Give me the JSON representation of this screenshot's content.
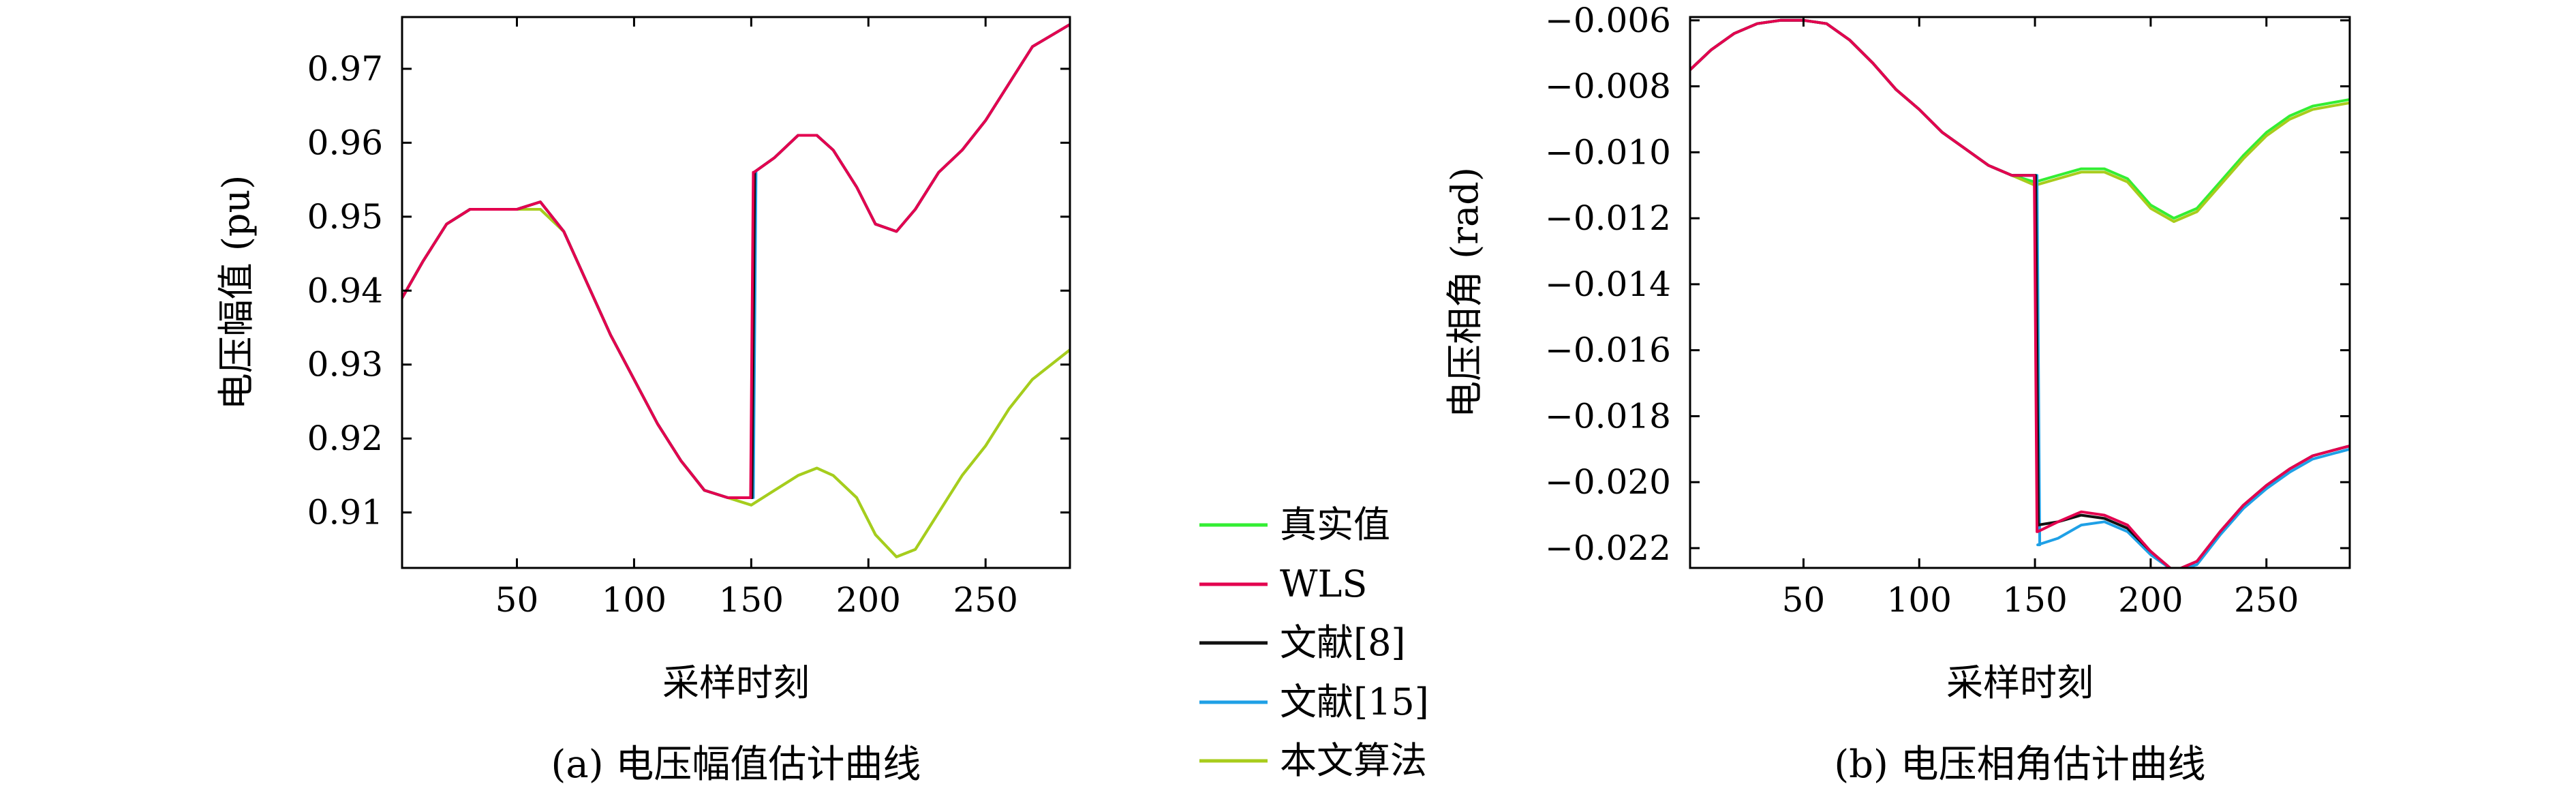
{
  "legend": [
    {
      "name": "真实值",
      "color": "#33ee33"
    },
    {
      "name": "WLS",
      "color": "#e3004f"
    },
    {
      "name": "文献[8]",
      "color": "#111111"
    },
    {
      "name": "文献[15]",
      "color": "#1fa0e6"
    },
    {
      "name": "本文算法",
      "color": "#a8cc1c"
    }
  ],
  "chart_data": [
    {
      "type": "line",
      "caption": "(a) 电压幅值估计曲线",
      "xlabel": "采样时刻",
      "ylabel": "电压幅值 (pu)",
      "xlim": [
        1,
        286
      ],
      "ylim": [
        0.9025,
        0.977
      ],
      "xticks": [
        50,
        100,
        150,
        200,
        250
      ],
      "yticks": [
        0.91,
        0.92,
        0.93,
        0.94,
        0.95,
        0.96,
        0.97
      ],
      "ytick_labels": [
        "0.91",
        "0.92",
        "0.93",
        "0.94",
        "0.95",
        "0.96",
        "0.97"
      ],
      "x": [
        1,
        10,
        20,
        30,
        40,
        50,
        60,
        70,
        80,
        90,
        100,
        110,
        120,
        130,
        140,
        150,
        160,
        170,
        178,
        185,
        195,
        203,
        212,
        220,
        230,
        240,
        250,
        260,
        270,
        286
      ],
      "series": [
        {
          "name": "真实值",
          "values": [
            0.939,
            0.944,
            0.949,
            0.951,
            0.951,
            0.951,
            0.951,
            0.948,
            0.941,
            0.934,
            0.928,
            0.922,
            0.917,
            0.913,
            0.912,
            0.911,
            0.913,
            0.915,
            0.916,
            0.915,
            0.912,
            0.907,
            0.904,
            0.905,
            0.91,
            0.915,
            0.919,
            0.924,
            0.928,
            0.932
          ]
        },
        {
          "name": "WLS",
          "values": [
            0.939,
            0.944,
            0.949,
            0.951,
            0.951,
            0.951,
            0.952,
            0.948,
            0.941,
            0.934,
            0.928,
            0.922,
            0.917,
            0.913,
            0.912,
            0.956,
            0.958,
            0.961,
            0.961,
            0.959,
            0.954,
            0.949,
            0.948,
            0.951,
            0.956,
            0.959,
            0.963,
            0.968,
            0.973,
            0.976
          ]
        },
        {
          "name": "文献[8]",
          "values": [
            0.939,
            0.944,
            0.949,
            0.951,
            0.951,
            0.951,
            0.952,
            0.948,
            0.941,
            0.934,
            0.928,
            0.922,
            0.917,
            0.913,
            0.912,
            0.956,
            0.958,
            0.961,
            0.961,
            0.959,
            0.954,
            0.949,
            0.948,
            0.951,
            0.956,
            0.959,
            0.963,
            0.968,
            0.973,
            0.976
          ]
        },
        {
          "name": "文献[15]",
          "values": [
            0.939,
            0.944,
            0.949,
            0.951,
            0.951,
            0.951,
            0.952,
            0.948,
            0.941,
            0.934,
            0.928,
            0.922,
            0.917,
            0.913,
            0.912,
            0.956,
            0.958,
            0.961,
            0.961,
            0.959,
            0.954,
            0.949,
            0.948,
            0.951,
            0.956,
            0.959,
            0.963,
            0.968,
            0.973,
            0.976
          ]
        },
        {
          "name": "本文算法",
          "values": [
            0.939,
            0.944,
            0.949,
            0.951,
            0.951,
            0.951,
            0.951,
            0.948,
            0.941,
            0.934,
            0.928,
            0.922,
            0.917,
            0.913,
            0.912,
            0.911,
            0.913,
            0.915,
            0.916,
            0.915,
            0.912,
            0.907,
            0.904,
            0.905,
            0.91,
            0.915,
            0.919,
            0.924,
            0.928,
            0.932
          ]
        }
      ]
    },
    {
      "type": "line",
      "caption": "(b) 电压相角估计曲线",
      "xlabel": "采样时刻",
      "ylabel": "电压相角 (rad)",
      "xlim": [
        1,
        286
      ],
      "ylim": [
        -0.0226,
        -0.0059
      ],
      "xticks": [
        50,
        100,
        150,
        200,
        250
      ],
      "yticks": [
        -0.022,
        -0.02,
        -0.018,
        -0.016,
        -0.014,
        -0.012,
        -0.01,
        -0.008,
        -0.006
      ],
      "ytick_labels": [
        "−0.022",
        "−0.020",
        "−0.018",
        "−0.016",
        "−0.014",
        "−0.012",
        "−0.010",
        "−0.008",
        "−0.006"
      ],
      "x": [
        1,
        10,
        20,
        30,
        40,
        50,
        60,
        70,
        80,
        90,
        100,
        110,
        120,
        130,
        140,
        150,
        160,
        170,
        180,
        190,
        200,
        210,
        220,
        230,
        240,
        250,
        260,
        270,
        286
      ],
      "series": [
        {
          "name": "真实值",
          "values": [
            -0.0075,
            -0.0069,
            -0.0064,
            -0.0061,
            -0.006,
            -0.006,
            -0.0061,
            -0.0066,
            -0.0073,
            -0.0081,
            -0.0087,
            -0.0094,
            -0.0099,
            -0.0104,
            -0.0107,
            -0.0109,
            -0.0107,
            -0.0105,
            -0.0105,
            -0.0108,
            -0.0116,
            -0.012,
            -0.0117,
            -0.0109,
            -0.0101,
            -0.0094,
            -0.0089,
            -0.0086,
            -0.0084
          ]
        },
        {
          "name": "WLS",
          "values": [
            -0.0075,
            -0.0069,
            -0.0064,
            -0.0061,
            -0.006,
            -0.006,
            -0.0061,
            -0.0066,
            -0.0073,
            -0.0081,
            -0.0087,
            -0.0094,
            -0.0099,
            -0.0104,
            -0.0107,
            -0.0215,
            -0.0212,
            -0.0209,
            -0.021,
            -0.0213,
            -0.0221,
            -0.0227,
            -0.0224,
            -0.0215,
            -0.0207,
            -0.0201,
            -0.0196,
            -0.0192,
            -0.0189
          ]
        },
        {
          "name": "文献[8]",
          "values": [
            -0.0075,
            -0.0069,
            -0.0064,
            -0.0061,
            -0.006,
            -0.006,
            -0.0061,
            -0.0066,
            -0.0073,
            -0.0081,
            -0.0087,
            -0.0094,
            -0.0099,
            -0.0104,
            -0.0107,
            -0.0213,
            -0.0212,
            -0.021,
            -0.0211,
            -0.0214,
            -0.0221,
            -0.0227,
            -0.0224,
            -0.0215,
            -0.0207,
            -0.0201,
            -0.0196,
            -0.0192,
            -0.0189
          ]
        },
        {
          "name": "文献[15]",
          "values": [
            -0.0075,
            -0.0069,
            -0.0064,
            -0.0061,
            -0.006,
            -0.006,
            -0.0061,
            -0.0066,
            -0.0073,
            -0.0081,
            -0.0087,
            -0.0094,
            -0.0099,
            -0.0104,
            -0.0107,
            -0.0219,
            -0.0217,
            -0.0213,
            -0.0212,
            -0.0215,
            -0.0222,
            -0.0227,
            -0.0225,
            -0.0216,
            -0.0208,
            -0.0202,
            -0.0197,
            -0.0193,
            -0.019
          ]
        },
        {
          "name": "本文算法",
          "values": [
            -0.0075,
            -0.0069,
            -0.0064,
            -0.0061,
            -0.006,
            -0.006,
            -0.0061,
            -0.0066,
            -0.0073,
            -0.0081,
            -0.0087,
            -0.0094,
            -0.0099,
            -0.0104,
            -0.0107,
            -0.011,
            -0.0108,
            -0.0106,
            -0.0106,
            -0.0109,
            -0.0117,
            -0.0121,
            -0.0118,
            -0.011,
            -0.0102,
            -0.0095,
            -0.009,
            -0.0087,
            -0.0085
          ]
        }
      ]
    }
  ]
}
